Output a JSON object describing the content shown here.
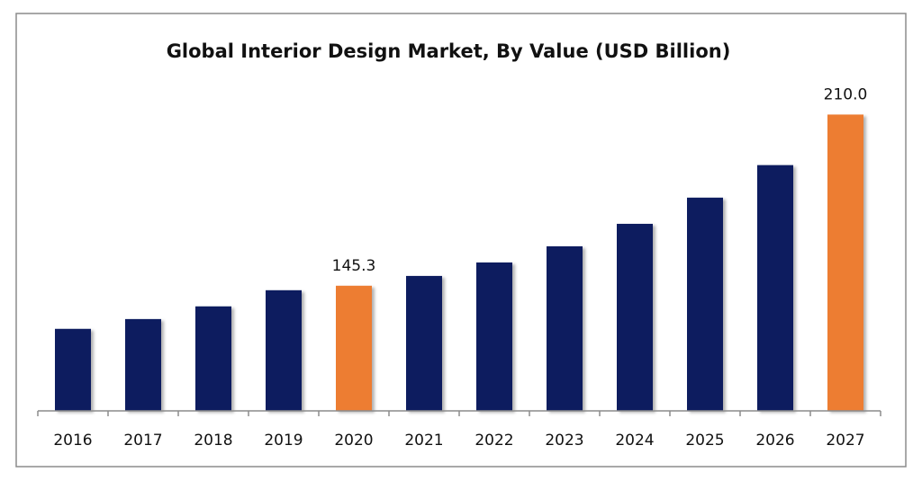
{
  "chart_data": {
    "type": "bar",
    "title": "Global Interior Design Market, By Value (USD Billion)",
    "categories": [
      "2016",
      "2017",
      "2018",
      "2019",
      "2020",
      "2021",
      "2022",
      "2023",
      "2024",
      "2025",
      "2026",
      "2027"
    ],
    "values": [
      129.0,
      132.7,
      137.5,
      143.6,
      145.3,
      149.0,
      154.1,
      160.2,
      168.7,
      178.6,
      190.9,
      210.0
    ],
    "value_labels": [
      null,
      null,
      null,
      null,
      "145.3",
      null,
      null,
      null,
      null,
      null,
      null,
      "210.0"
    ],
    "colors": [
      "#0b1f5e",
      "#0b1f5e",
      "#0b1f5e",
      "#0b1f5e",
      "#ed7d31",
      "#0b1f5e",
      "#0b1f5e",
      "#0b1f5e",
      "#0b1f5e",
      "#0b1f5e",
      "#0b1f5e",
      "#ed7d31"
    ],
    "ylim": [
      98,
      220
    ]
  }
}
